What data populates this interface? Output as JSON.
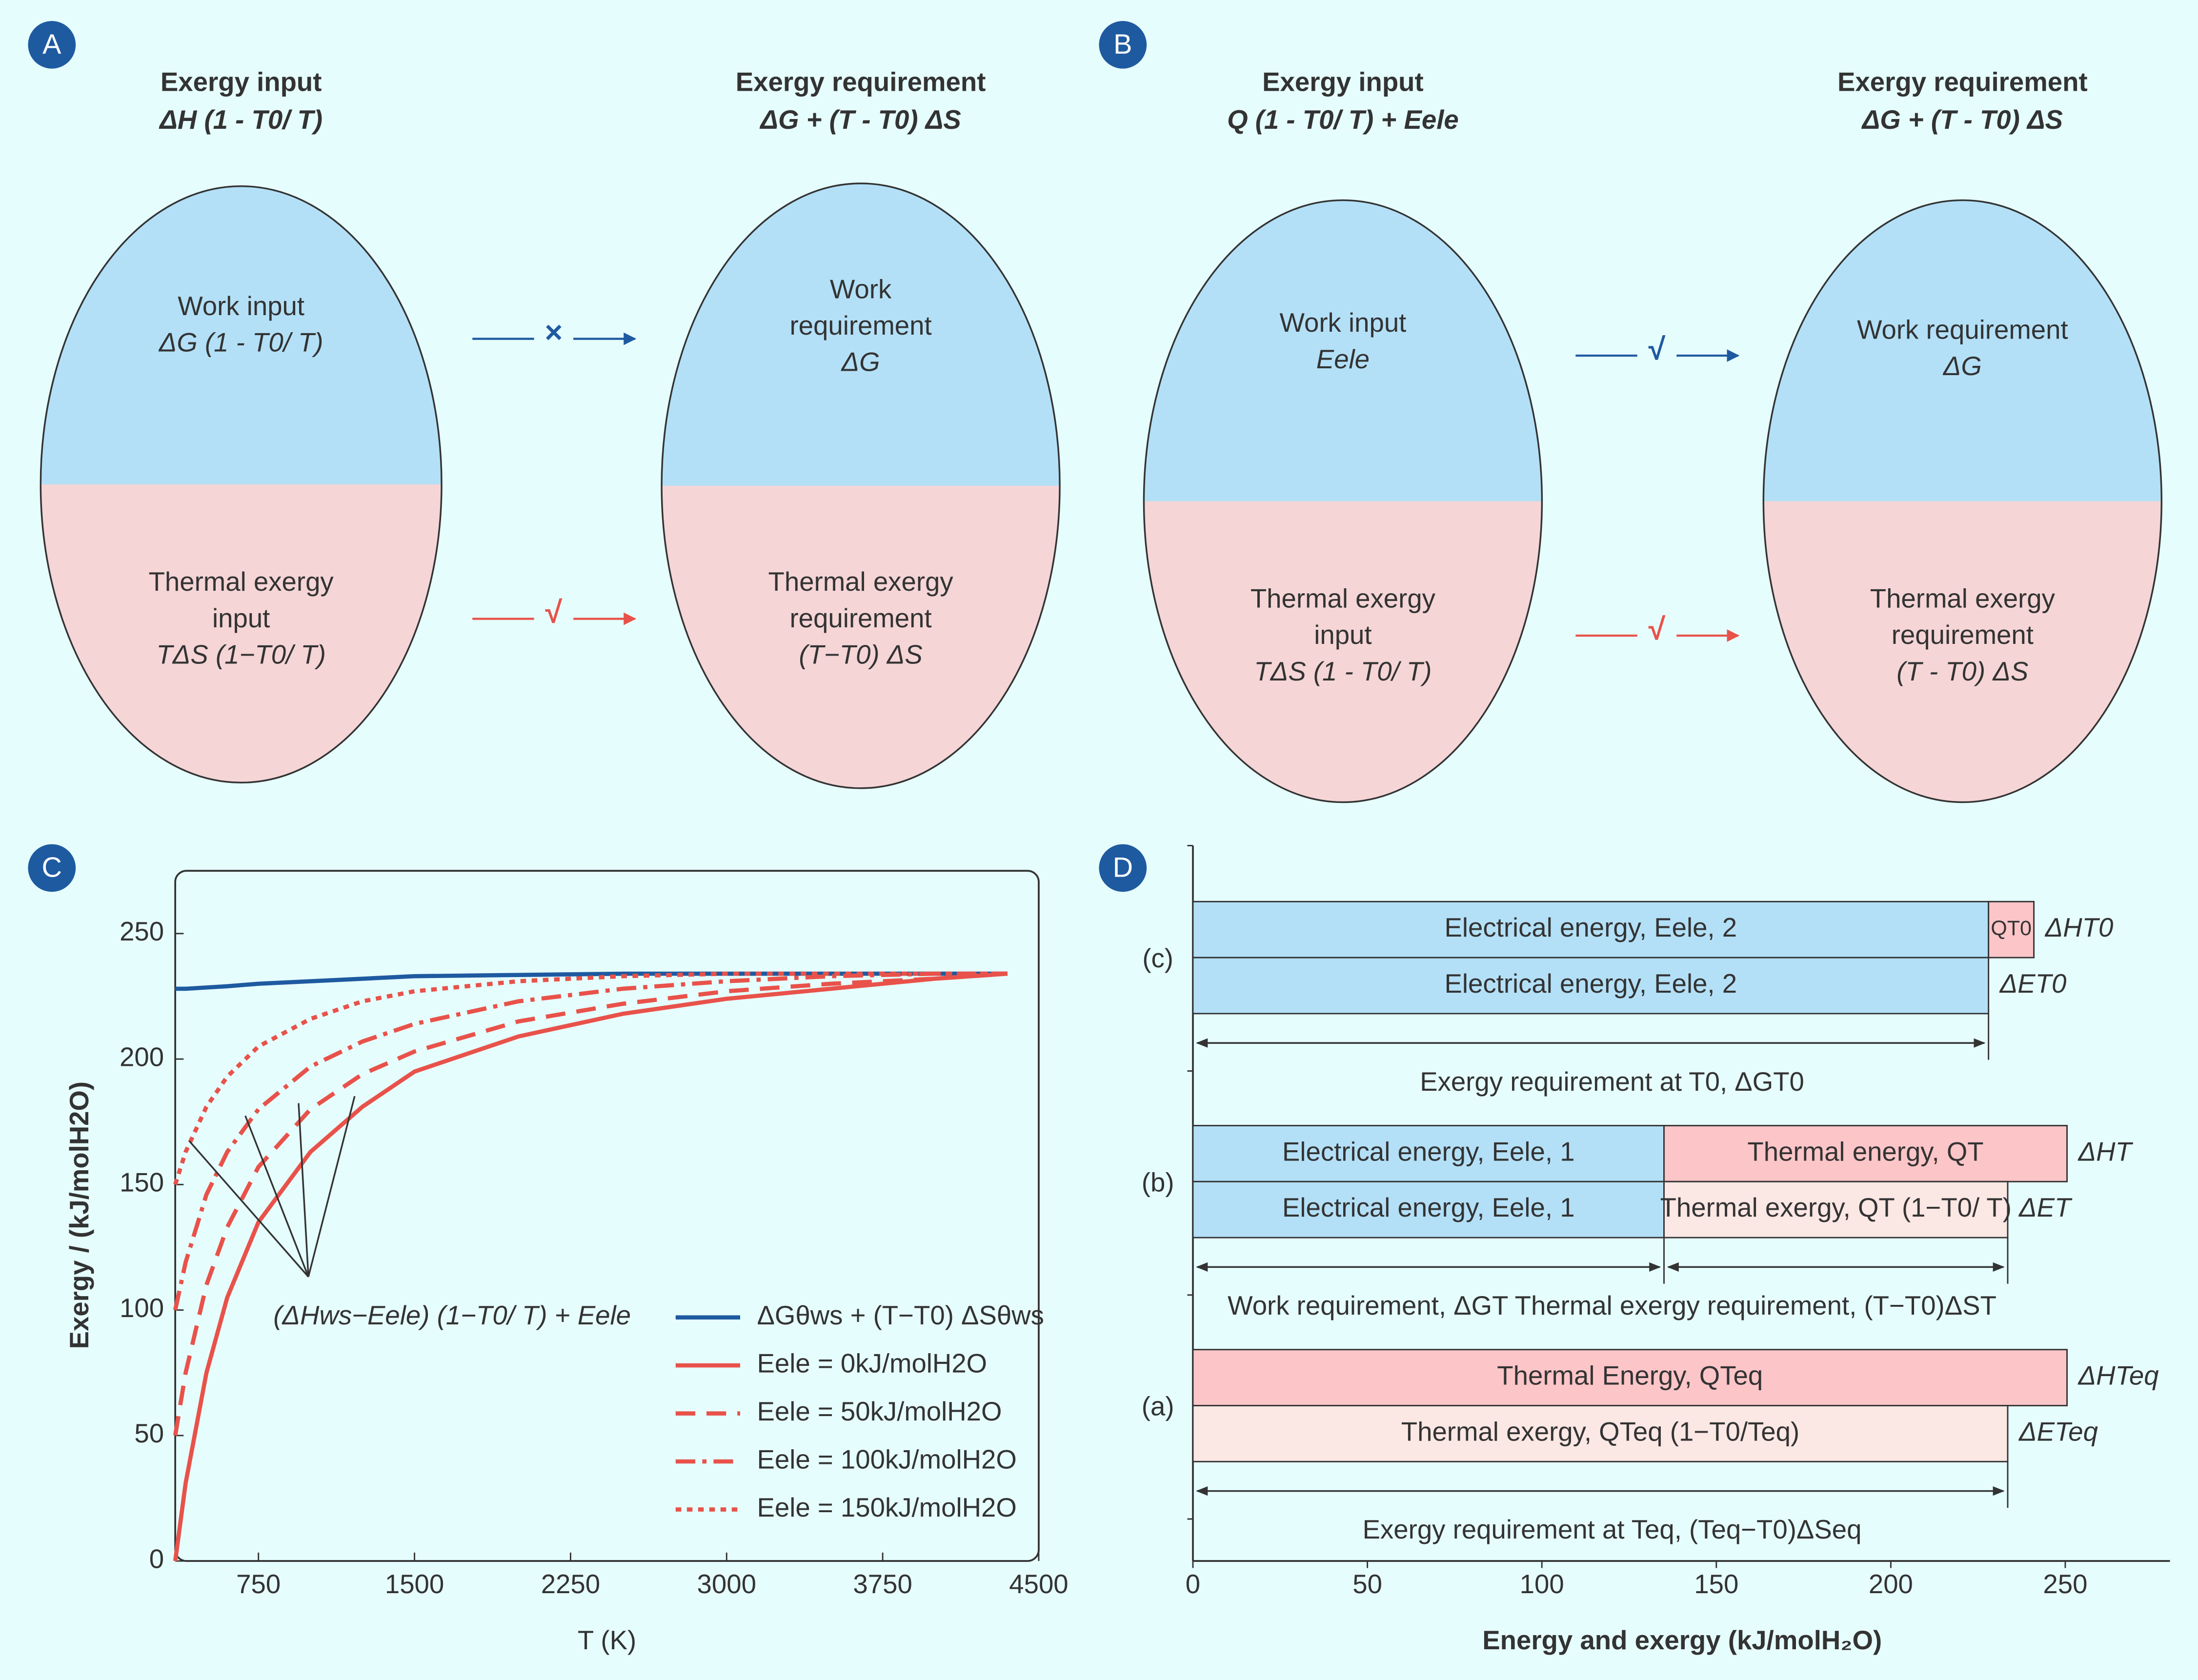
{
  "panels": [
    {
      "letter": "A",
      "left": {
        "title": "Exergy input",
        "formula": "ΔH (1 - T0/ T)",
        "top": [
          "Work input",
          "ΔG (1 - T0/ T)"
        ],
        "bottom": [
          "Thermal exergy",
          "input",
          "TΔS (1−T0/ T)"
        ]
      },
      "right": {
        "title": "Exergy requirement",
        "formula": "ΔG + (T - T0) ΔS",
        "top": [
          "Work",
          "requirement",
          "ΔG"
        ],
        "bottom": [
          "Thermal exergy",
          "requirement",
          "(T−T0) ΔS"
        ]
      },
      "top_arrow": "×",
      "bottom_arrow": "√"
    },
    {
      "letter": "B",
      "left": {
        "title": "Exergy input",
        "formula": "Q (1 - T0/ T) + Eele",
        "top": [
          "Work input",
          "Eele"
        ],
        "bottom": [
          "Thermal exergy",
          "input",
          "TΔS (1 - T0/ T)"
        ]
      },
      "right": {
        "title": "Exergy requirement",
        "formula": "ΔG + (T - T0) ΔS",
        "top": [
          "Work requirement",
          "ΔG"
        ],
        "bottom": [
          "Thermal exergy",
          "requirement",
          "(T - T0) ΔS"
        ]
      },
      "top_arrow": "√",
      "bottom_arrow": "√"
    }
  ],
  "chart_data": [
    {
      "type": "line",
      "panel": "C",
      "xlabel": "T (K)",
      "ylabel": "Exergy / (kJ/molH2O)",
      "annotation": "(ΔHws−Eele) (1−T0/ T) + Eele",
      "x": [
        350,
        400,
        500,
        600,
        750,
        1000,
        1250,
        1500,
        2000,
        2500,
        3000,
        3500,
        4000,
        4350
      ],
      "xlim": [
        350,
        4500
      ],
      "ylim": [
        0,
        275
      ],
      "xticks": [
        750,
        1500,
        2250,
        3000,
        3750,
        4500
      ],
      "yticks": [
        0,
        50,
        100,
        150,
        200,
        250
      ],
      "series": [
        {
          "name": "ΔGθws + (T−T0) ΔSθws",
          "color": "#1e5aa0",
          "style": "solid",
          "values": [
            228,
            228,
            228.5,
            229,
            230,
            231,
            232,
            233,
            233.5,
            234,
            234,
            234,
            234,
            234
          ]
        },
        {
          "name": "Eele = 0kJ/molH2O",
          "color": "#e8524a",
          "style": "solid",
          "values": [
            0,
            31,
            75,
            105,
            135,
            163,
            181,
            195,
            209,
            218,
            224,
            228,
            232,
            234
          ]
        },
        {
          "name": "Eele = 50kJ/molH2O",
          "color": "#e8524a",
          "style": "dashed",
          "values": [
            50,
            75,
            110,
            133,
            157,
            180,
            194,
            203,
            215,
            222,
            227,
            230,
            232,
            234
          ]
        },
        {
          "name": "Eele = 100kJ/molH2O",
          "color": "#e8524a",
          "style": "dashdot",
          "values": [
            100,
            119,
            146,
            163,
            180,
            197,
            207,
            214,
            223,
            228,
            231,
            233,
            234,
            234
          ]
        },
        {
          "name": "Eele = 150kJ/molH2O",
          "color": "#e8524a",
          "style": "dotted",
          "values": [
            150,
            163,
            181,
            193,
            205,
            216,
            223,
            227,
            231,
            233,
            234,
            234,
            234,
            234
          ]
        }
      ]
    },
    {
      "type": "stacked-bar",
      "panel": "D",
      "xlabel": "Energy and exergy (kJ/molH₂O)",
      "xlim": [
        0,
        280
      ],
      "xticks": [
        0,
        50,
        100,
        150,
        200,
        250
      ],
      "groups": [
        {
          "label": "(c)",
          "caption": "Exergy requirement at T0, ΔGT0",
          "bars": [
            {
              "end_label": "ΔHT0",
              "segments": [
                {
                  "name": "Electrical energy, Eele, 2",
                  "value": 228,
                  "color": "#b3e0f7"
                },
                {
                  "name": "QT0",
                  "value": 13,
                  "color": "#fcc5c8"
                }
              ]
            },
            {
              "end_label": "ΔET0",
              "segments": [
                {
                  "name": "Electrical energy, Eele, 2",
                  "value": 228,
                  "color": "#b3e0f7"
                }
              ]
            }
          ]
        },
        {
          "label": "(b)",
          "caption": "Work requirement, ΔGT   Thermal exergy requirement, (T−T0)ΔST",
          "bars": [
            {
              "end_label": "ΔHT",
              "segments": [
                {
                  "name": "Electrical energy, Eele, 1",
                  "value": 135,
                  "color": "#b3e0f7"
                },
                {
                  "name": "Thermal energy, QT",
                  "value": 115.5,
                  "color": "#fcc5c8"
                }
              ]
            },
            {
              "end_label": "ΔET",
              "segments": [
                {
                  "name": "Electrical energy, Eele, 1",
                  "value": 135,
                  "color": "#b3e0f7"
                },
                {
                  "name": "Thermal exergy, QT (1−T0/ T)",
                  "value": 98.5,
                  "color": "#fbe7e4"
                }
              ]
            }
          ]
        },
        {
          "label": "(a)",
          "caption": "Exergy requirement at Teq, (Teq−T0)ΔSeq",
          "bars": [
            {
              "end_label": "ΔHTeq",
              "segments": [
                {
                  "name": "Thermal Energy, QTeq",
                  "value": 250.5,
                  "color": "#fcc5c8"
                }
              ]
            },
            {
              "end_label": "ΔETeq",
              "segments": [
                {
                  "name": "Thermal exergy, QTeq (1−T0/Teq)",
                  "value": 233.5,
                  "color": "#fbe7e4"
                }
              ]
            }
          ]
        }
      ]
    }
  ]
}
